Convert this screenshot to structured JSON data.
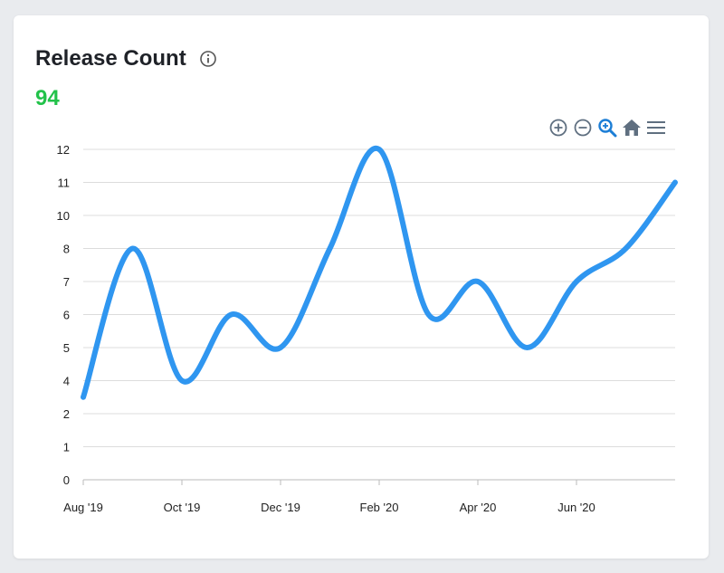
{
  "card": {
    "title": "Release Count",
    "info_icon": "info-icon",
    "metric": "94"
  },
  "toolbar": {
    "icons": [
      "zoom-in-icon",
      "zoom-out-icon",
      "zoom-select-icon",
      "home-reset-icon",
      "menu-icon"
    ]
  },
  "colors": {
    "line": "#2f96f0",
    "metric": "#22c24a",
    "grid": "#dcdcdc",
    "toolbar_icon": "#5f6f80",
    "active_icon": "#1c7ed6"
  },
  "chart_data": {
    "type": "line",
    "title": "",
    "xlabel": "",
    "ylabel": "",
    "x_tick_labels": [
      "Aug '19",
      "Oct '19",
      "Dec '19",
      "Feb '20",
      "Apr '20",
      "Jun '20"
    ],
    "y_tick_labels": [
      "0",
      "1",
      "2",
      "4",
      "5",
      "6",
      "7",
      "8",
      "10",
      "11",
      "12"
    ],
    "grid": true,
    "legend": "none",
    "series": [
      {
        "x": [
          "Aug '19",
          "Sep '19",
          "Oct '19",
          "Nov '19",
          "Dec '19",
          "Jan '20",
          "Feb '20",
          "Mar '20",
          "Apr '20",
          "May '20",
          "Jun '20",
          "Jul '20",
          "Aug '20"
        ],
        "values": [
          3,
          8,
          4,
          6,
          5,
          8,
          12,
          6,
          7,
          5,
          7,
          8,
          11
        ]
      }
    ]
  }
}
